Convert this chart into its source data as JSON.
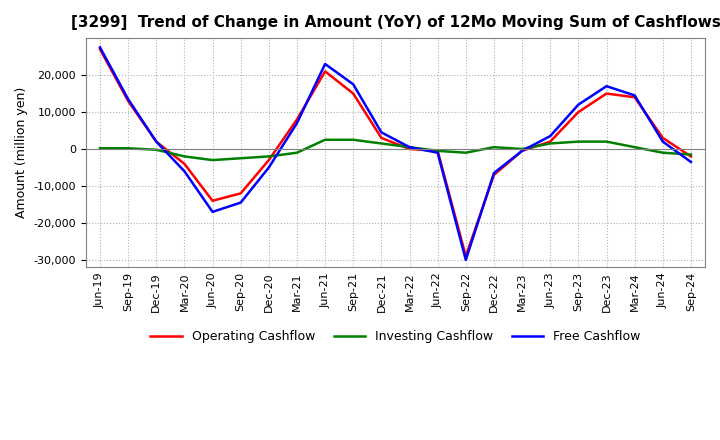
{
  "title": "[3299]  Trend of Change in Amount (YoY) of 12Mo Moving Sum of Cashflows",
  "ylabel": "Amount (million yen)",
  "x_labels": [
    "Jun-19",
    "Sep-19",
    "Dec-19",
    "Mar-20",
    "Jun-20",
    "Sep-20",
    "Dec-20",
    "Mar-21",
    "Jun-21",
    "Sep-21",
    "Dec-21",
    "Mar-22",
    "Jun-22",
    "Sep-22",
    "Dec-22",
    "Mar-23",
    "Jun-23",
    "Sep-23",
    "Dec-23",
    "Mar-24",
    "Jun-24",
    "Sep-24"
  ],
  "operating": [
    27000,
    13000,
    2000,
    -4000,
    -14000,
    -12000,
    -3000,
    8000,
    21000,
    15000,
    3000,
    0,
    -500,
    -29000,
    -7000,
    -500,
    2000,
    10000,
    15000,
    14000,
    3000,
    -2000
  ],
  "investing": [
    200,
    200,
    -200,
    -2000,
    -3000,
    -2500,
    -2000,
    -1000,
    2500,
    2500,
    1500,
    500,
    -500,
    -1000,
    500,
    0,
    1500,
    2000,
    2000,
    500,
    -1000,
    -1500
  ],
  "free": [
    27500,
    13500,
    2000,
    -6000,
    -17000,
    -14500,
    -5000,
    7000,
    23000,
    17500,
    4500,
    500,
    -1000,
    -30000,
    -6500,
    -500,
    3500,
    12000,
    17000,
    14500,
    2000,
    -3500
  ],
  "ylim": [
    -32000,
    30000
  ],
  "yticks": [
    -30000,
    -20000,
    -10000,
    0,
    10000,
    20000
  ],
  "operating_color": "#ff0000",
  "investing_color": "#008000",
  "free_color": "#0000ff",
  "background_color": "#ffffff",
  "grid_color": "#b0b0b0",
  "title_fontsize": 11,
  "axis_fontsize": 9,
  "tick_fontsize": 8,
  "linewidth": 1.8
}
